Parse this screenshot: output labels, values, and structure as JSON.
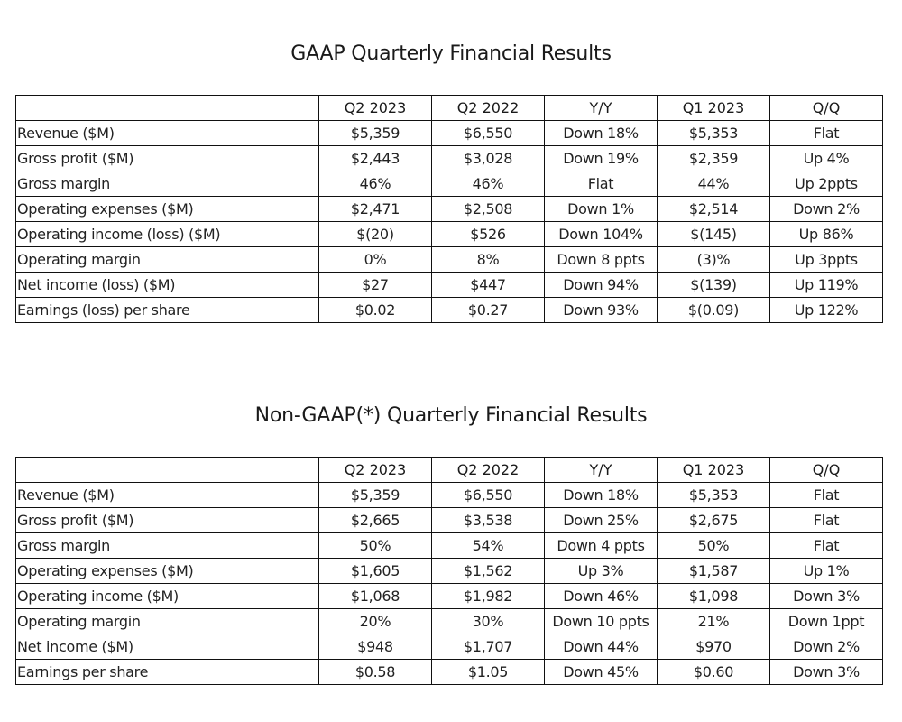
{
  "gaap": {
    "title": "GAAP Quarterly Financial Results",
    "headers": [
      "",
      "Q2 2023",
      "Q2 2022",
      "Y/Y",
      "Q1 2023",
      "Q/Q"
    ],
    "rows": [
      {
        "label": "Revenue ($M)",
        "values": [
          "$5,359",
          "$6,550",
          "Down 18%",
          "$5,353",
          "Flat"
        ]
      },
      {
        "label": "Gross profit ($M)",
        "values": [
          "$2,443",
          "$3,028",
          "Down 19%",
          "$2,359",
          "Up 4%"
        ]
      },
      {
        "label": "Gross margin",
        "values": [
          "46%",
          "46%",
          "Flat",
          "44%",
          "Up 2ppts"
        ]
      },
      {
        "label": "Operating expenses ($M)",
        "values": [
          "$2,471",
          "$2,508",
          "Down 1%",
          "$2,514",
          "Down 2%"
        ]
      },
      {
        "label": "Operating income (loss) ($M)",
        "values": [
          "$(20)",
          "$526",
          "Down 104%",
          "$(145)",
          "Up 86%"
        ]
      },
      {
        "label": "Operating margin",
        "values": [
          "0%",
          "8%",
          "Down 8 ppts",
          "(3)%",
          "Up 3ppts"
        ]
      },
      {
        "label": "Net income (loss) ($M)",
        "values": [
          "$27",
          "$447",
          "Down 94%",
          "$(139)",
          "Up 119%"
        ]
      },
      {
        "label": "Earnings (loss) per share",
        "values": [
          "$0.02",
          "$0.27",
          "Down 93%",
          "$(0.09)",
          "Up 122%"
        ]
      }
    ]
  },
  "nongaap": {
    "title": "Non-GAAP(*) Quarterly Financial Results",
    "headers": [
      "",
      "Q2 2023",
      "Q2 2022",
      "Y/Y",
      "Q1 2023",
      "Q/Q"
    ],
    "rows": [
      {
        "label": "Revenue ($M)",
        "values": [
          "$5,359",
          "$6,550",
          "Down 18%",
          "$5,353",
          "Flat"
        ]
      },
      {
        "label": "Gross profit ($M)",
        "values": [
          "$2,665",
          "$3,538",
          "Down 25%",
          "$2,675",
          "Flat"
        ]
      },
      {
        "label": "Gross margin",
        "values": [
          "50%",
          "54%",
          "Down 4 ppts",
          "50%",
          "Flat"
        ]
      },
      {
        "label": "Operating expenses ($M)",
        "values": [
          "$1,605",
          "$1,562",
          "Up 3%",
          "$1,587",
          "Up 1%"
        ]
      },
      {
        "label": "Operating income ($M)",
        "values": [
          "$1,068",
          "$1,982",
          "Down 46%",
          "$1,098",
          "Down 3%"
        ]
      },
      {
        "label": "Operating margin",
        "values": [
          "20%",
          "30%",
          "Down 10 ppts",
          "21%",
          "Down 1ppt"
        ]
      },
      {
        "label": "Net income ($M)",
        "values": [
          "$948",
          "$1,707",
          "Down 44%",
          "$970",
          "Down 2%"
        ]
      },
      {
        "label": "Earnings per share",
        "values": [
          "$0.58",
          "$1.05",
          "Down 45%",
          "$0.60",
          "Down 3%"
        ]
      }
    ]
  }
}
